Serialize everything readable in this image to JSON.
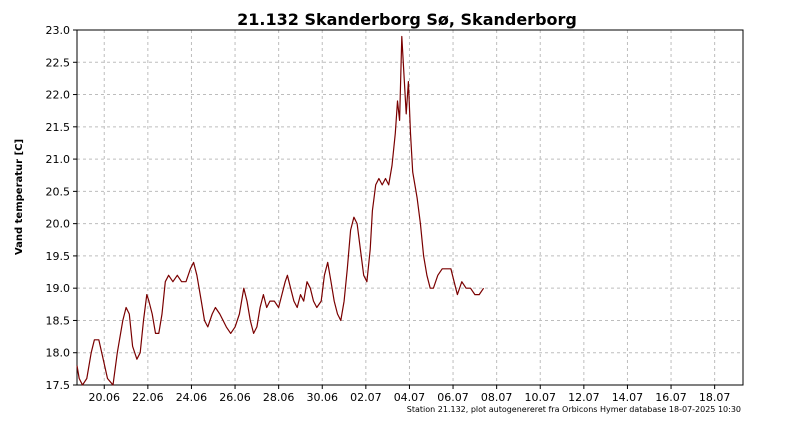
{
  "chart_data": {
    "type": "line",
    "title": "21.132  Skanderborg Sø, Skanderborg",
    "ylabel": "Vand temperatur [C]",
    "xlabel": "",
    "footer": "Station 21.132, plot autogenereret fra Orbicons Hymer database 18-07-2025 10:30",
    "ylim": [
      17.5,
      23.0
    ],
    "yticks": [
      "17.5",
      "18.0",
      "18.5",
      "19.0",
      "19.5",
      "20.0",
      "20.5",
      "21.0",
      "21.5",
      "22.0",
      "22.5",
      "23.0"
    ],
    "xlim_days": [
      18.75,
      37.4
    ],
    "xticks": [
      {
        "label": "20.06",
        "day": 20
      },
      {
        "label": "22.06",
        "day": 22
      },
      {
        "label": "24.06",
        "day": 24
      },
      {
        "label": "26.06",
        "day": 26
      },
      {
        "label": "28.06",
        "day": 28
      },
      {
        "label": "30.06",
        "day": 30
      },
      {
        "label": "02.07",
        "day": 32
      },
      {
        "label": "04.07",
        "day": 34
      },
      {
        "label": "06.07",
        "day": 36
      },
      {
        "label": "08.07",
        "day": 38
      },
      {
        "label": "10.07",
        "day": 40
      },
      {
        "label": "12.07",
        "day": 42
      },
      {
        "label": "14.07",
        "day": 44
      },
      {
        "label": "16.07",
        "day": 46
      },
      {
        "label": "18.07",
        "day": 48
      }
    ],
    "grid": true,
    "line_color": "#7a0000",
    "series": [
      {
        "name": "",
        "points": [
          [
            18.75,
            17.8
          ],
          [
            18.85,
            17.6
          ],
          [
            19.0,
            17.5
          ],
          [
            19.2,
            17.6
          ],
          [
            19.4,
            18.0
          ],
          [
            19.55,
            18.2
          ],
          [
            19.75,
            18.2
          ],
          [
            19.95,
            17.9
          ],
          [
            20.15,
            17.6
          ],
          [
            20.4,
            17.5
          ],
          [
            20.6,
            18.0
          ],
          [
            20.85,
            18.5
          ],
          [
            21.0,
            18.7
          ],
          [
            21.15,
            18.6
          ],
          [
            21.3,
            18.1
          ],
          [
            21.5,
            17.9
          ],
          [
            21.65,
            18.0
          ],
          [
            21.8,
            18.5
          ],
          [
            21.95,
            18.9
          ],
          [
            22.05,
            18.8
          ],
          [
            22.2,
            18.6
          ],
          [
            22.35,
            18.3
          ],
          [
            22.5,
            18.3
          ],
          [
            22.65,
            18.6
          ],
          [
            22.8,
            19.1
          ],
          [
            22.95,
            19.2
          ],
          [
            23.15,
            19.1
          ],
          [
            23.35,
            19.2
          ],
          [
            23.55,
            19.1
          ],
          [
            23.75,
            19.1
          ],
          [
            23.95,
            19.3
          ],
          [
            24.1,
            19.4
          ],
          [
            24.25,
            19.2
          ],
          [
            24.45,
            18.8
          ],
          [
            24.6,
            18.5
          ],
          [
            24.75,
            18.4
          ],
          [
            24.95,
            18.6
          ],
          [
            25.1,
            18.7
          ],
          [
            25.3,
            18.6
          ],
          [
            25.45,
            18.5
          ],
          [
            25.6,
            18.4
          ],
          [
            25.8,
            18.3
          ],
          [
            26.0,
            18.4
          ],
          [
            26.2,
            18.6
          ],
          [
            26.4,
            19.0
          ],
          [
            26.55,
            18.8
          ],
          [
            26.7,
            18.5
          ],
          [
            26.85,
            18.3
          ],
          [
            27.0,
            18.4
          ],
          [
            27.15,
            18.7
          ],
          [
            27.3,
            18.9
          ],
          [
            27.45,
            18.7
          ],
          [
            27.6,
            18.8
          ],
          [
            27.8,
            18.8
          ],
          [
            28.0,
            18.7
          ],
          [
            28.15,
            18.9
          ],
          [
            28.3,
            19.1
          ],
          [
            28.4,
            19.2
          ],
          [
            28.55,
            19.0
          ],
          [
            28.7,
            18.8
          ],
          [
            28.85,
            18.7
          ],
          [
            29.0,
            18.9
          ],
          [
            29.15,
            18.8
          ],
          [
            29.3,
            19.1
          ],
          [
            29.45,
            19.0
          ],
          [
            29.6,
            18.8
          ],
          [
            29.75,
            18.7
          ],
          [
            29.95,
            18.8
          ],
          [
            30.1,
            19.2
          ],
          [
            30.25,
            19.4
          ],
          [
            30.4,
            19.1
          ],
          [
            30.55,
            18.8
          ],
          [
            30.7,
            18.6
          ],
          [
            30.85,
            18.5
          ],
          [
            31.0,
            18.8
          ],
          [
            31.15,
            19.3
          ],
          [
            31.3,
            19.9
          ],
          [
            31.45,
            20.1
          ],
          [
            31.6,
            20.0
          ],
          [
            31.75,
            19.6
          ],
          [
            31.9,
            19.2
          ],
          [
            32.05,
            19.1
          ],
          [
            32.2,
            19.6
          ],
          [
            32.3,
            20.2
          ],
          [
            32.45,
            20.6
          ],
          [
            32.6,
            20.7
          ],
          [
            32.75,
            20.6
          ],
          [
            32.9,
            20.7
          ],
          [
            33.05,
            20.6
          ],
          [
            33.2,
            20.9
          ],
          [
            33.35,
            21.4
          ],
          [
            33.45,
            21.9
          ],
          [
            33.55,
            21.6
          ],
          [
            33.65,
            22.9
          ],
          [
            33.75,
            22.3
          ],
          [
            33.85,
            21.7
          ],
          [
            33.95,
            22.2
          ],
          [
            34.05,
            21.4
          ],
          [
            34.15,
            20.8
          ],
          [
            34.25,
            20.6
          ],
          [
            34.35,
            20.4
          ],
          [
            34.5,
            20.0
          ],
          [
            34.65,
            19.5
          ],
          [
            34.8,
            19.2
          ],
          [
            34.95,
            19.0
          ],
          [
            35.1,
            19.0
          ],
          [
            35.3,
            19.2
          ],
          [
            35.5,
            19.3
          ],
          [
            35.7,
            19.3
          ],
          [
            35.9,
            19.3
          ],
          [
            36.05,
            19.1
          ],
          [
            36.2,
            18.9
          ],
          [
            36.4,
            19.1
          ],
          [
            36.6,
            19.0
          ],
          [
            36.8,
            19.0
          ],
          [
            37.0,
            18.9
          ],
          [
            37.2,
            18.9
          ],
          [
            37.4,
            19.0
          ]
        ]
      }
    ]
  }
}
